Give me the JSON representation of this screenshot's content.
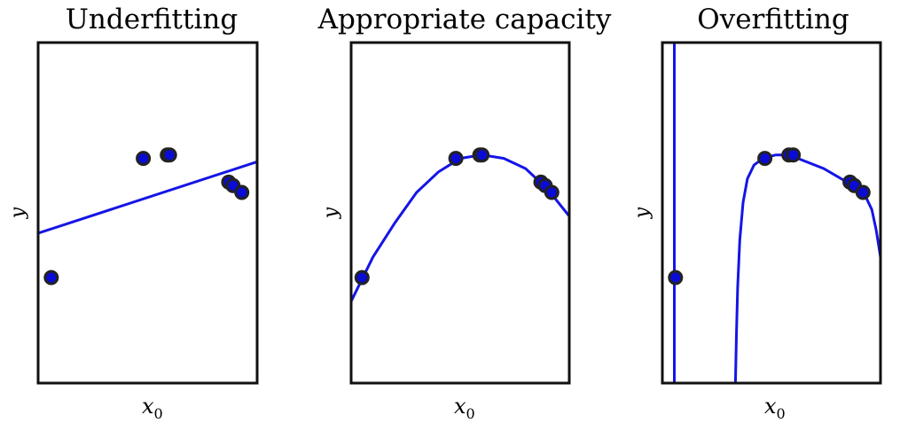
{
  "chart_data": [
    {
      "type": "scatter",
      "title": "Underfitting",
      "xlabel": "x",
      "xlabel_sub": "0",
      "ylabel": "y",
      "xlim": [
        0,
        1
      ],
      "ylim": [
        0,
        1
      ],
      "fit": "linear",
      "points": [
        {
          "x": 0.06,
          "y": 0.31
        },
        {
          "x": 0.48,
          "y": 0.66
        },
        {
          "x": 0.59,
          "y": 0.67
        },
        {
          "x": 0.6,
          "y": 0.67
        },
        {
          "x": 0.87,
          "y": 0.59
        },
        {
          "x": 0.89,
          "y": 0.58
        },
        {
          "x": 0.93,
          "y": 0.56
        }
      ],
      "curve": [
        [
          0,
          0.44
        ],
        [
          1,
          0.65
        ]
      ]
    },
    {
      "type": "scatter",
      "title": "Appropriate capacity",
      "xlabel": "x",
      "xlabel_sub": "0",
      "ylabel": "y",
      "xlim": [
        0,
        1
      ],
      "ylim": [
        0,
        1
      ],
      "fit": "quadratic",
      "points": [
        {
          "x": 0.05,
          "y": 0.31
        },
        {
          "x": 0.48,
          "y": 0.66
        },
        {
          "x": 0.59,
          "y": 0.67
        },
        {
          "x": 0.6,
          "y": 0.67
        },
        {
          "x": 0.87,
          "y": 0.59
        },
        {
          "x": 0.89,
          "y": 0.58
        },
        {
          "x": 0.92,
          "y": 0.56
        }
      ],
      "curve": [
        [
          0,
          0.24
        ],
        [
          0.1,
          0.37
        ],
        [
          0.2,
          0.47
        ],
        [
          0.3,
          0.56
        ],
        [
          0.4,
          0.62
        ],
        [
          0.5,
          0.66
        ],
        [
          0.6,
          0.67
        ],
        [
          0.7,
          0.66
        ],
        [
          0.8,
          0.63
        ],
        [
          0.9,
          0.57
        ],
        [
          1,
          0.49
        ]
      ]
    },
    {
      "type": "scatter",
      "title": "Overfitting",
      "xlabel": "x",
      "xlabel_sub": "0",
      "ylabel": "y",
      "xlim": [
        0,
        1
      ],
      "ylim": [
        0,
        1
      ],
      "fit": "high-degree polynomial",
      "points": [
        {
          "x": 0.06,
          "y": 0.31
        },
        {
          "x": 0.47,
          "y": 0.66
        },
        {
          "x": 0.58,
          "y": 0.67
        },
        {
          "x": 0.6,
          "y": 0.67
        },
        {
          "x": 0.86,
          "y": 0.59
        },
        {
          "x": 0.88,
          "y": 0.58
        },
        {
          "x": 0.92,
          "y": 0.56
        }
      ],
      "curve": [
        [
          0.335,
          0.0
        ],
        [
          0.34,
          0.15
        ],
        [
          0.345,
          0.28
        ],
        [
          0.355,
          0.42
        ],
        [
          0.37,
          0.53
        ],
        [
          0.39,
          0.6
        ],
        [
          0.42,
          0.64
        ],
        [
          0.46,
          0.66
        ],
        [
          0.52,
          0.67
        ],
        [
          0.58,
          0.67
        ],
        [
          0.66,
          0.65
        ],
        [
          0.74,
          0.63
        ],
        [
          0.82,
          0.6
        ],
        [
          0.88,
          0.58
        ],
        [
          0.93,
          0.55
        ],
        [
          0.96,
          0.51
        ],
        [
          0.98,
          0.45
        ],
        [
          1.0,
          0.37
        ]
      ],
      "curve2": [
        [
          0.055,
          0.0
        ],
        [
          0.055,
          1.0
        ]
      ]
    }
  ],
  "colors": {
    "point_fill": "#0b0bd6",
    "point_stroke": "#222222",
    "fit_line": "#1515e6",
    "frame": "#111111"
  }
}
